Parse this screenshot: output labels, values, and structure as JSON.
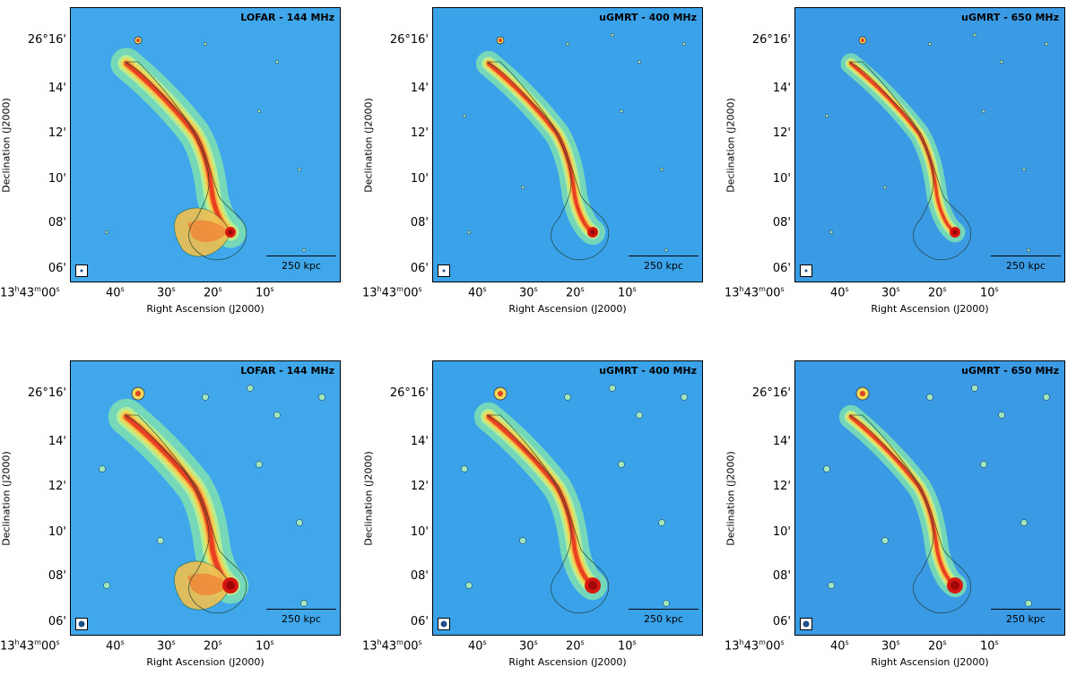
{
  "x_axis_label": "Right Ascension (J2000)",
  "y_axis_label": "Declination (J2000)",
  "y_ticks": [
    "26°16'",
    "14'",
    "12'",
    "10'",
    "08'",
    "06'"
  ],
  "x_ticks": [
    {
      "main": "13",
      "sup1": "h",
      "mid": "43",
      "sup2": "m",
      "end": "00",
      "sup3": "s"
    },
    {
      "main": "40",
      "sup1": "s"
    },
    {
      "main": "30",
      "sup1": "s"
    },
    {
      "main": "20",
      "sup1": "s"
    },
    {
      "main": "10",
      "sup1": "s"
    }
  ],
  "scale_bar_label": "250 kpc",
  "colors": {
    "background": "#3aa0e8",
    "jet_core": "#e02818",
    "mid": "#f0d048",
    "outer": "#7fe0a0"
  },
  "panels": [
    {
      "title": "LOFAR - 144 MHz",
      "row": "high-resolution",
      "beam": "small"
    },
    {
      "title": "uGMRT - 400 MHz",
      "row": "high-resolution",
      "beam": "small"
    },
    {
      "title": "uGMRT - 650 MHz",
      "row": "high-resolution",
      "beam": "small"
    },
    {
      "title": "LOFAR - 144 MHz",
      "row": "low-resolution",
      "beam": "large"
    },
    {
      "title": "uGMRT - 400 MHz",
      "row": "low-resolution",
      "beam": "large"
    },
    {
      "title": "uGMRT - 650 MHz",
      "row": "low-resolution",
      "beam": "large"
    }
  ]
}
